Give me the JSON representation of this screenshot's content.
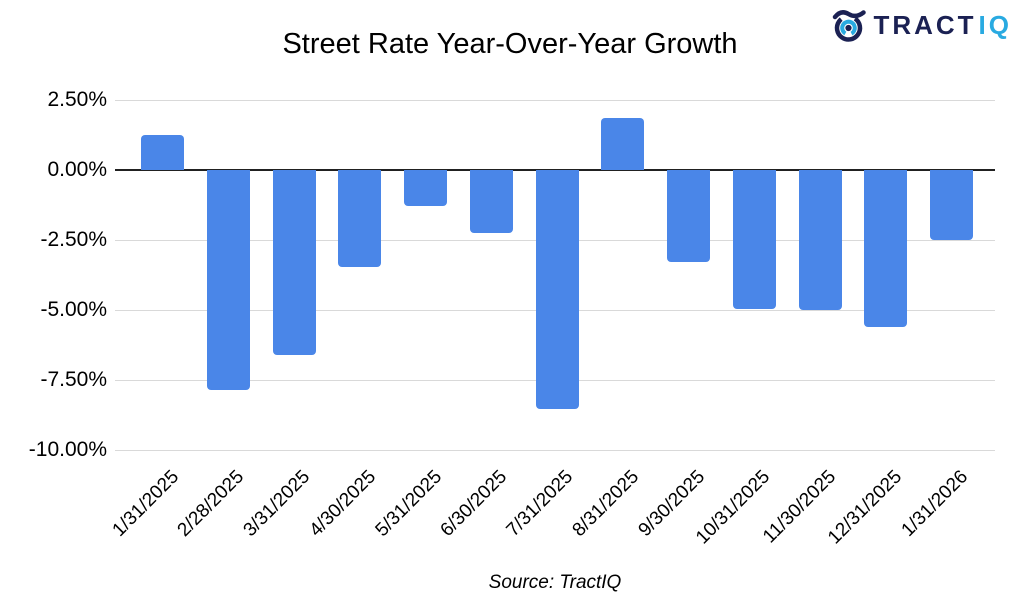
{
  "logo": {
    "brand_primary": "TRACT",
    "brand_secondary": "IQ",
    "icon": "tractiq-target-icon",
    "colors": {
      "navy": "#1b2153",
      "cyan": "#29aae1"
    }
  },
  "chart_data": {
    "type": "bar",
    "title": "Street Rate Year-Over-Year Growth",
    "categories": [
      "1/31/2025",
      "2/28/2025",
      "3/31/2025",
      "4/30/2025",
      "5/31/2025",
      "6/30/2025",
      "7/31/2025",
      "8/31/2025",
      "9/30/2025",
      "10/31/2025",
      "11/30/2025",
      "12/31/2025",
      "1/31/2026"
    ],
    "values": [
      1.25,
      -7.85,
      -6.6,
      -3.45,
      -1.3,
      -2.25,
      -8.55,
      1.85,
      -3.3,
      -4.95,
      -5.0,
      -5.6,
      -2.5
    ],
    "y_ticks": [
      "2.50%",
      "0.00%",
      "-2.50%",
      "-5.00%",
      "-7.50%",
      "-10.00%"
    ],
    "y_tick_values": [
      2.5,
      0,
      -2.5,
      -5,
      -7.5,
      -10
    ],
    "ylim": [
      -10,
      2.5
    ],
    "xlabel": "",
    "ylabel": "",
    "grid": true,
    "legend_position": "none",
    "bar_color": "#4a86e8",
    "source": "Source: TractIQ"
  }
}
